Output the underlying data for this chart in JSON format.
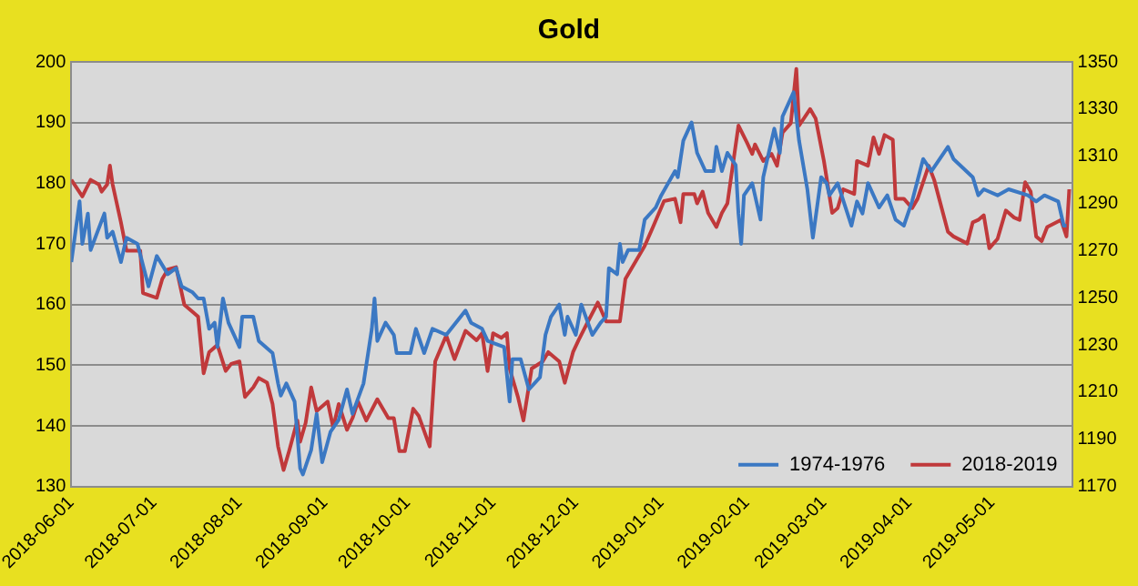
{
  "chart_data": {
    "type": "line",
    "title": "Gold",
    "legend": "bottom right",
    "grid": "y",
    "xlim": [
      "2018-06-01",
      "2019-05-30"
    ],
    "xticks": [
      "2018-06-01",
      "2018-07-01",
      "2018-08-01",
      "2018-09-01",
      "2018-10-01",
      "2018-11-01",
      "2018-12-01",
      "2019-01-01",
      "2019-02-01",
      "2019-03-01",
      "2019-04-01",
      "2019-05-01"
    ],
    "ylim": [
      130,
      200
    ],
    "yticks": [
      130,
      140,
      150,
      160,
      170,
      180,
      190,
      200
    ],
    "y2lim": [
      1170,
      1350
    ],
    "y2ticks": [
      1170,
      1190,
      1210,
      1230,
      1250,
      1270,
      1290,
      1310,
      1330,
      1350
    ],
    "series": [
      {
        "name": "1974-1976",
        "color": "#3b78c3",
        "x": [
          "2018-06-01",
          "2018-06-04",
          "2018-06-05",
          "2018-06-07",
          "2018-06-08",
          "2018-06-13",
          "2018-06-14",
          "2018-06-16",
          "2018-06-19",
          "2018-06-21",
          "2018-06-25",
          "2018-06-29",
          "2018-07-02",
          "2018-07-06",
          "2018-07-09",
          "2018-07-11",
          "2018-07-15",
          "2018-07-17",
          "2018-07-19",
          "2018-07-21",
          "2018-07-23",
          "2018-07-24",
          "2018-07-26",
          "2018-07-28",
          "2018-08-01",
          "2018-08-02",
          "2018-08-06",
          "2018-08-08",
          "2018-08-13",
          "2018-08-15",
          "2018-08-16",
          "2018-08-18",
          "2018-08-21",
          "2018-08-23",
          "2018-08-24",
          "2018-08-27",
          "2018-08-29",
          "2018-08-31",
          "2018-09-03",
          "2018-09-06",
          "2018-09-09",
          "2018-09-11",
          "2018-09-15",
          "2018-09-18",
          "2018-09-19",
          "2018-09-20",
          "2018-09-23",
          "2018-09-26",
          "2018-09-27",
          "2018-10-02",
          "2018-10-04",
          "2018-10-07",
          "2018-10-10",
          "2018-10-15",
          "2018-10-22",
          "2018-10-24",
          "2018-10-28",
          "2018-10-30",
          "2018-11-05",
          "2018-11-07",
          "2018-11-08",
          "2018-11-11",
          "2018-11-14",
          "2018-11-18",
          "2018-11-20",
          "2018-11-22",
          "2018-11-25",
          "2018-11-27",
          "2018-11-28",
          "2018-12-01",
          "2018-12-03",
          "2018-12-07",
          "2018-12-10",
          "2018-12-12",
          "2018-12-13",
          "2018-12-16",
          "2018-12-17",
          "2018-12-18",
          "2018-12-20",
          "2018-12-24",
          "2018-12-26",
          "2018-12-30",
          "2019-01-01",
          "2019-01-06",
          "2019-01-07",
          "2019-01-09",
          "2019-01-12",
          "2019-01-14",
          "2019-01-17",
          "2019-01-20",
          "2019-01-21",
          "2019-01-23",
          "2019-01-25",
          "2019-01-28",
          "2019-01-29",
          "2019-01-30",
          "2019-01-31",
          "2019-02-03",
          "2019-02-06",
          "2019-02-07",
          "2019-02-11",
          "2019-02-13",
          "2019-02-14",
          "2019-02-18",
          "2019-02-20",
          "2019-02-23",
          "2019-02-25",
          "2019-02-28",
          "2019-03-02",
          "2019-03-03",
          "2019-03-06",
          "2019-03-11",
          "2019-03-13",
          "2019-03-15",
          "2019-03-17",
          "2019-03-21",
          "2019-03-24",
          "2019-03-27",
          "2019-03-30",
          "2019-04-02",
          "2019-04-06",
          "2019-04-09",
          "2019-04-15",
          "2019-04-17",
          "2019-04-24",
          "2019-04-26",
          "2019-04-28",
          "2019-05-03",
          "2019-05-07",
          "2019-05-14",
          "2019-05-17",
          "2019-05-20",
          "2019-05-25",
          "2019-05-27",
          "2019-05-28"
        ],
        "values": [
          167,
          177,
          170,
          175,
          169,
          175,
          171,
          172,
          167,
          171,
          170,
          163,
          168,
          165,
          166,
          163,
          162,
          161,
          161,
          156,
          157,
          153,
          161,
          157,
          153,
          158,
          158,
          154,
          152,
          147,
          145,
          147,
          144,
          133,
          132,
          136,
          142,
          134,
          139,
          141,
          146,
          142,
          147,
          156,
          161,
          154,
          157,
          155,
          152,
          152,
          156,
          152,
          156,
          155,
          159,
          157,
          156,
          154,
          153,
          144,
          151,
          151,
          146,
          148,
          155,
          158,
          160,
          155,
          158,
          155,
          160,
          155,
          157,
          158,
          166,
          165,
          170,
          167,
          169,
          169,
          174,
          176,
          178,
          182,
          181,
          187,
          190,
          185,
          182,
          182,
          186,
          182,
          185,
          183,
          175,
          170,
          178,
          180,
          174,
          181,
          189,
          185,
          191,
          195,
          187,
          179,
          171,
          181,
          180,
          178,
          180,
          173,
          177,
          175,
          180,
          176,
          178,
          174,
          173,
          177,
          184,
          182,
          186,
          184,
          181,
          178,
          179,
          178,
          179,
          178,
          177,
          178,
          177,
          173,
          173
        ]
      },
      {
        "name": "2018-2019",
        "color": "#c0393b",
        "axis": "y2",
        "x": [
          "2018-06-01",
          "2018-06-05",
          "2018-06-08",
          "2018-06-11",
          "2018-06-12",
          "2018-06-14",
          "2018-06-15",
          "2018-06-16",
          "2018-06-19",
          "2018-06-21",
          "2018-06-23",
          "2018-06-26",
          "2018-06-27",
          "2018-07-02",
          "2018-07-04",
          "2018-07-06",
          "2018-07-09",
          "2018-07-12",
          "2018-07-15",
          "2018-07-17",
          "2018-07-19",
          "2018-07-21",
          "2018-07-24",
          "2018-07-27",
          "2018-07-29",
          "2018-08-01",
          "2018-08-03",
          "2018-08-06",
          "2018-08-08",
          "2018-08-11",
          "2018-08-13",
          "2018-08-15",
          "2018-08-17",
          "2018-08-19",
          "2018-08-22",
          "2018-08-23",
          "2018-08-25",
          "2018-08-27",
          "2018-08-29",
          "2018-09-02",
          "2018-09-04",
          "2018-09-06",
          "2018-09-09",
          "2018-09-11",
          "2018-09-13",
          "2018-09-16",
          "2018-09-20",
          "2018-09-24",
          "2018-09-26",
          "2018-09-28",
          "2018-09-30",
          "2018-10-03",
          "2018-10-05",
          "2018-10-09",
          "2018-10-11",
          "2018-10-15",
          "2018-10-18",
          "2018-10-22",
          "2018-10-26",
          "2018-10-28",
          "2018-10-30",
          "2018-11-01",
          "2018-11-04",
          "2018-11-06",
          "2018-11-07",
          "2018-11-10",
          "2018-11-12",
          "2018-11-15",
          "2018-11-19",
          "2018-11-21",
          "2018-11-25",
          "2018-11-27",
          "2018-11-30",
          "2018-12-02",
          "2018-12-05",
          "2018-12-09",
          "2018-12-12",
          "2018-12-17",
          "2018-12-19",
          "2018-12-26",
          "2018-12-29",
          "2019-01-02",
          "2019-01-06",
          "2019-01-08",
          "2019-01-09",
          "2019-01-13",
          "2019-01-14",
          "2019-01-16",
          "2019-01-18",
          "2019-01-21",
          "2019-01-23",
          "2019-01-25",
          "2019-01-29",
          "2019-02-01",
          "2019-02-03",
          "2019-02-04",
          "2019-02-07",
          "2019-02-10",
          "2019-02-12",
          "2019-02-14",
          "2019-02-17",
          "2019-02-19",
          "2019-02-20",
          "2019-02-24",
          "2019-02-26",
          "2019-03-01",
          "2019-03-04",
          "2019-03-06",
          "2019-03-08",
          "2019-03-12",
          "2019-03-13",
          "2019-03-17",
          "2019-03-19",
          "2019-03-21",
          "2019-03-23",
          "2019-03-26",
          "2019-03-27",
          "2019-03-30",
          "2019-04-02",
          "2019-04-04",
          "2019-04-08",
          "2019-04-10",
          "2019-04-15",
          "2019-04-17",
          "2019-04-22",
          "2019-04-24",
          "2019-04-26",
          "2019-04-28",
          "2019-04-30",
          "2019-05-03",
          "2019-05-06",
          "2019-05-09",
          "2019-05-11",
          "2019-05-13",
          "2019-05-15",
          "2019-05-17",
          "2019-05-19",
          "2019-05-21",
          "2019-05-26",
          "2019-05-28",
          "2019-05-29"
        ],
        "values": [
          1300,
          1293,
          1300,
          1298,
          1295,
          1298,
          1306,
          1298,
          1282,
          1270,
          1270,
          1270,
          1252,
          1250,
          1258,
          1262,
          1263,
          1247,
          1244,
          1242,
          1218,
          1227,
          1230,
          1219,
          1222,
          1223,
          1208,
          1212,
          1216,
          1214,
          1205,
          1187,
          1177,
          1185,
          1198,
          1189,
          1197,
          1212,
          1202,
          1206,
          1195,
          1205,
          1194,
          1199,
          1206,
          1198,
          1207,
          1199,
          1199,
          1185,
          1185,
          1203,
          1200,
          1187,
          1223,
          1234,
          1224,
          1236,
          1232,
          1235,
          1219,
          1235,
          1233,
          1235,
          1220,
          1208,
          1198,
          1220,
          1223,
          1227,
          1223,
          1214,
          1227,
          1232,
          1239,
          1248,
          1240,
          1240,
          1258,
          1272,
          1280,
          1291,
          1292,
          1282,
          1294,
          1294,
          1290,
          1295,
          1286,
          1280,
          1286,
          1290,
          1323,
          1316,
          1311,
          1315,
          1308,
          1311,
          1306,
          1320,
          1324,
          1347,
          1323,
          1330,
          1326,
          1308,
          1286,
          1288,
          1296,
          1294,
          1308,
          1306,
          1318,
          1311,
          1319,
          1317,
          1292,
          1292,
          1288,
          1292,
          1306,
          1300,
          1278,
          1276,
          1273,
          1282,
          1283,
          1285,
          1271,
          1275,
          1287,
          1284,
          1283,
          1299,
          1295,
          1276,
          1274,
          1280,
          1283,
          1276,
          1296
        ]
      }
    ]
  }
}
